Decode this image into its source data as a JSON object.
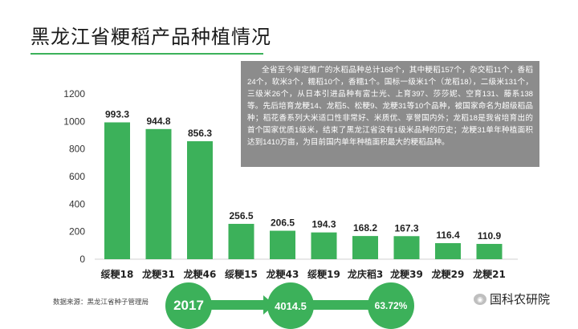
{
  "title": "黑龙江省粳稻产品种植情况",
  "note": "全省至今审定推广的水稻品种总计168个，其中粳稻157个，杂交稻11个，香稻24个，软米3个，糯稻10个，香糯1个。国标一级米1个（龙稻18），二级米131个，三级米26个，从日本引进品种有富士光、上育397、莎莎妮、空育131、藤系138等。先后培育龙粳14、龙稻5、松粳9、龙粳31等10个品种，被国家命名为超级稻品种；稻花香系列大米适口性非常好、米质优、享誉国内外；龙稻18是我省培育出的首个国家优质1级米，结束了黑龙江省没有1级米品种的历史；龙粳31单年种植面积达到1410万亩，为目前国内单年种植面积最大的粳稻品种。",
  "source": "数据来源：黑龙江省种子管理局",
  "highlights": [
    "2017",
    "4014.5",
    "63.72%"
  ],
  "watermark": "国科农研院",
  "colors": {
    "bar": "#3cb15a",
    "note_bg": "#8c8c8c"
  },
  "chart_data": {
    "type": "bar",
    "title": "",
    "xlabel": "",
    "ylabel": "",
    "ylim": [
      0,
      1200
    ],
    "yticks": [
      0,
      200,
      400,
      600,
      800,
      1000,
      1200
    ],
    "categories": [
      "绥粳18",
      "龙粳31",
      "龙粳46",
      "绥粳15",
      "龙粳43",
      "绥粳19",
      "龙庆稻3",
      "龙粳39",
      "龙粳29",
      "龙粳21"
    ],
    "values": [
      993.3,
      944.8,
      856.3,
      256.5,
      206.5,
      194.3,
      168.2,
      167.3,
      116.4,
      110.9
    ],
    "value_labels": [
      "993.3",
      "944.8",
      "856.3",
      "256.5",
      "206.5",
      "194.3",
      "168.2",
      "167.3",
      "116.4",
      "110.9"
    ],
    "grid": false,
    "legend": "none"
  }
}
